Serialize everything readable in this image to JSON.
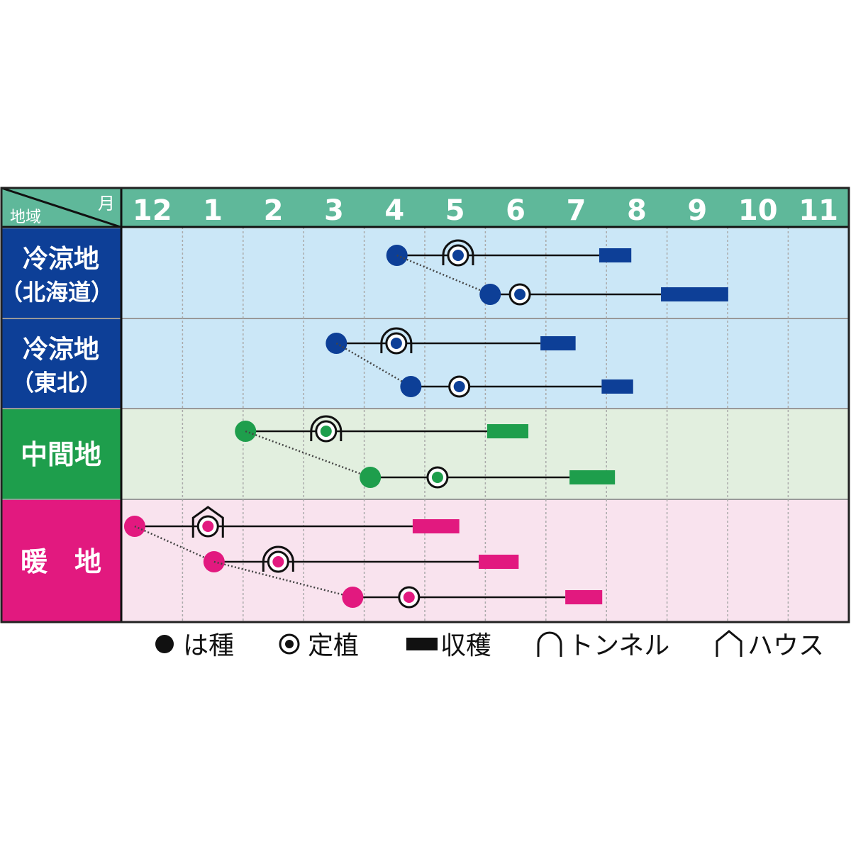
{
  "chart_data": {
    "type": "timeline",
    "corner_label_top": "月",
    "corner_label_bottom": "地域",
    "months": [
      "12",
      "1",
      "2",
      "3",
      "4",
      "5",
      "6",
      "7",
      "8",
      "9",
      "10",
      "11"
    ],
    "x_axis_note": "positions in months; 12.x = December of previous year, 1.0 = start of January",
    "grid": true,
    "colors": {
      "header": "#5fb89a",
      "blue": "#0d3f97",
      "green": "#1e9e4c",
      "pink": "#e2197f"
    },
    "regions": [
      {
        "name_line1": "冷涼地",
        "name_line2": "（北海道）",
        "color": "#0d3f97",
        "bg": "#cbe7f7",
        "schedules": [
          {
            "sow": 4.54,
            "transplant": 5.55,
            "cover": "tunnel",
            "harvest": [
              7.88,
              8.41
            ]
          },
          {
            "sow": 6.08,
            "transplant": 6.57,
            "cover": "none",
            "harvest": [
              8.9,
              10.01
            ]
          }
        ]
      },
      {
        "name_line1": "冷涼地",
        "name_line2": "（東北）",
        "color": "#0d3f97",
        "bg": "#cbe7f7",
        "schedules": [
          {
            "sow": 3.54,
            "transplant": 4.53,
            "cover": "tunnel",
            "harvest": [
              6.91,
              7.49
            ]
          },
          {
            "sow": 4.77,
            "transplant": 5.57,
            "cover": "none",
            "harvest": [
              7.92,
              8.44
            ]
          }
        ]
      },
      {
        "name_line1": "中間地",
        "name_line2": "",
        "color": "#1e9e4c",
        "bg": "#e2efdf",
        "schedules": [
          {
            "sow": 2.04,
            "transplant": 3.37,
            "cover": "tunnel",
            "harvest": [
              6.03,
              6.71
            ]
          },
          {
            "sow": 4.1,
            "transplant": 5.21,
            "cover": "none",
            "harvest": [
              7.39,
              8.14
            ]
          }
        ]
      },
      {
        "name_line1": "暖　地",
        "name_line2": "",
        "color": "#e2197f",
        "bg": "#f9e3ee",
        "schedules": [
          {
            "sow": 12.21,
            "transplant": 1.42,
            "cover": "house",
            "harvest": [
              4.8,
              5.57
            ]
          },
          {
            "sow": 1.52,
            "transplant": 2.58,
            "cover": "tunnel",
            "harvest": [
              5.89,
              6.55
            ]
          },
          {
            "sow": 3.81,
            "transplant": 4.74,
            "cover": "none",
            "harvest": [
              7.32,
              7.93
            ]
          }
        ]
      }
    ],
    "legend": [
      {
        "icon": "sow",
        "label": "は種"
      },
      {
        "icon": "transplant",
        "label": "定植"
      },
      {
        "icon": "harvest",
        "label": "収穫"
      },
      {
        "icon": "tunnel",
        "label": "トンネル"
      },
      {
        "icon": "house",
        "label": "ハウス"
      }
    ]
  }
}
